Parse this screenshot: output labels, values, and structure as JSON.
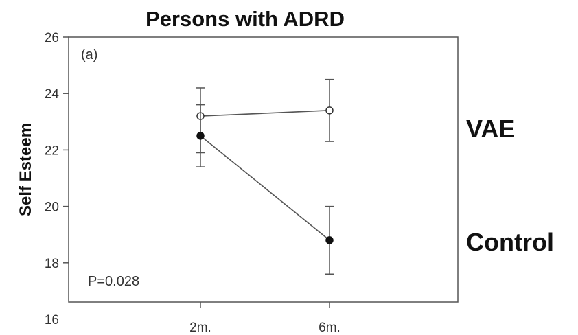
{
  "chart_data": {
    "type": "line",
    "title": "Persons with ADRD",
    "panel_label": "(a)",
    "ylabel": "Self Esteem",
    "xlabel": "",
    "categories": [
      "2m.",
      "6m."
    ],
    "ylim": [
      16,
      26
    ],
    "yticks": [
      18,
      20,
      22,
      24,
      26
    ],
    "yticks_partial": [
      16
    ],
    "grid": false,
    "annotation": "P=0.028",
    "series": [
      {
        "name": "VAE",
        "marker": "open-circle",
        "values": [
          23.2,
          23.4
        ],
        "error_low": [
          21.9,
          22.3
        ],
        "error_high": [
          24.2,
          24.5
        ]
      },
      {
        "name": "Control",
        "marker": "filled-circle",
        "values": [
          22.5,
          18.8
        ],
        "error_low": [
          21.4,
          17.6
        ],
        "error_high": [
          23.6,
          20.0
        ]
      }
    ],
    "colors": {
      "line": "#555555",
      "axis": "#555555",
      "filled_marker": "#111111",
      "open_marker_fill": "#ffffff"
    }
  }
}
